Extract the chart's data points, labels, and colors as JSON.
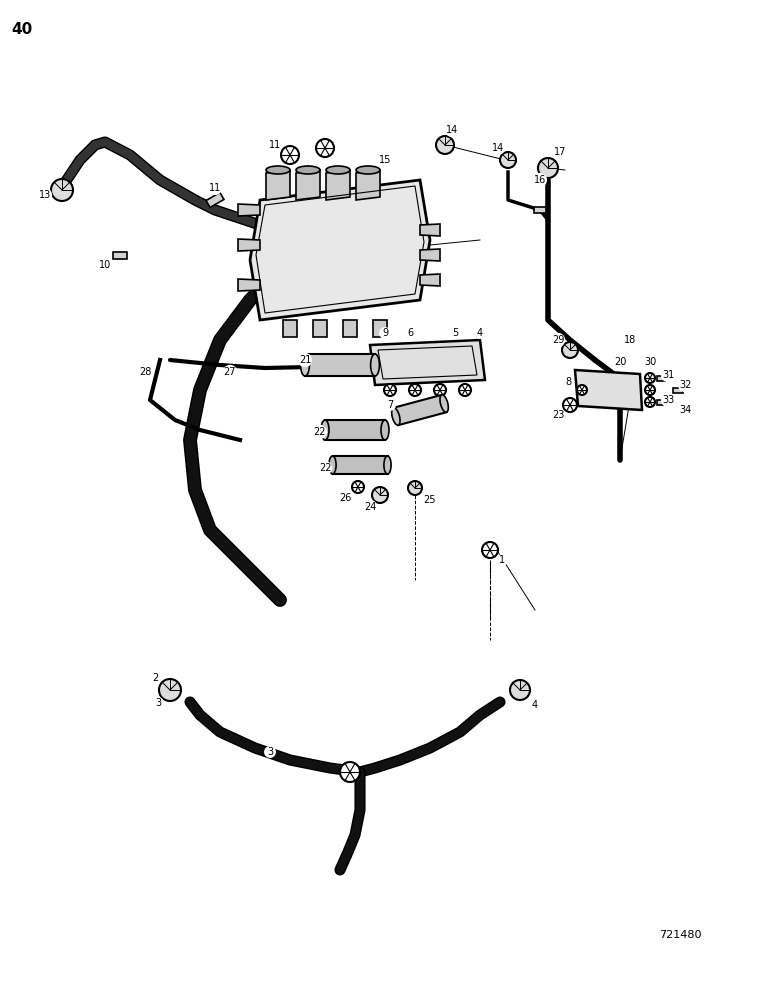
{
  "page_number": "40",
  "catalog_number": "721480",
  "bg_color": "#ffffff",
  "ink_color": "#000000",
  "title": "",
  "figsize": [
    7.72,
    10.0
  ],
  "dpi": 100
}
